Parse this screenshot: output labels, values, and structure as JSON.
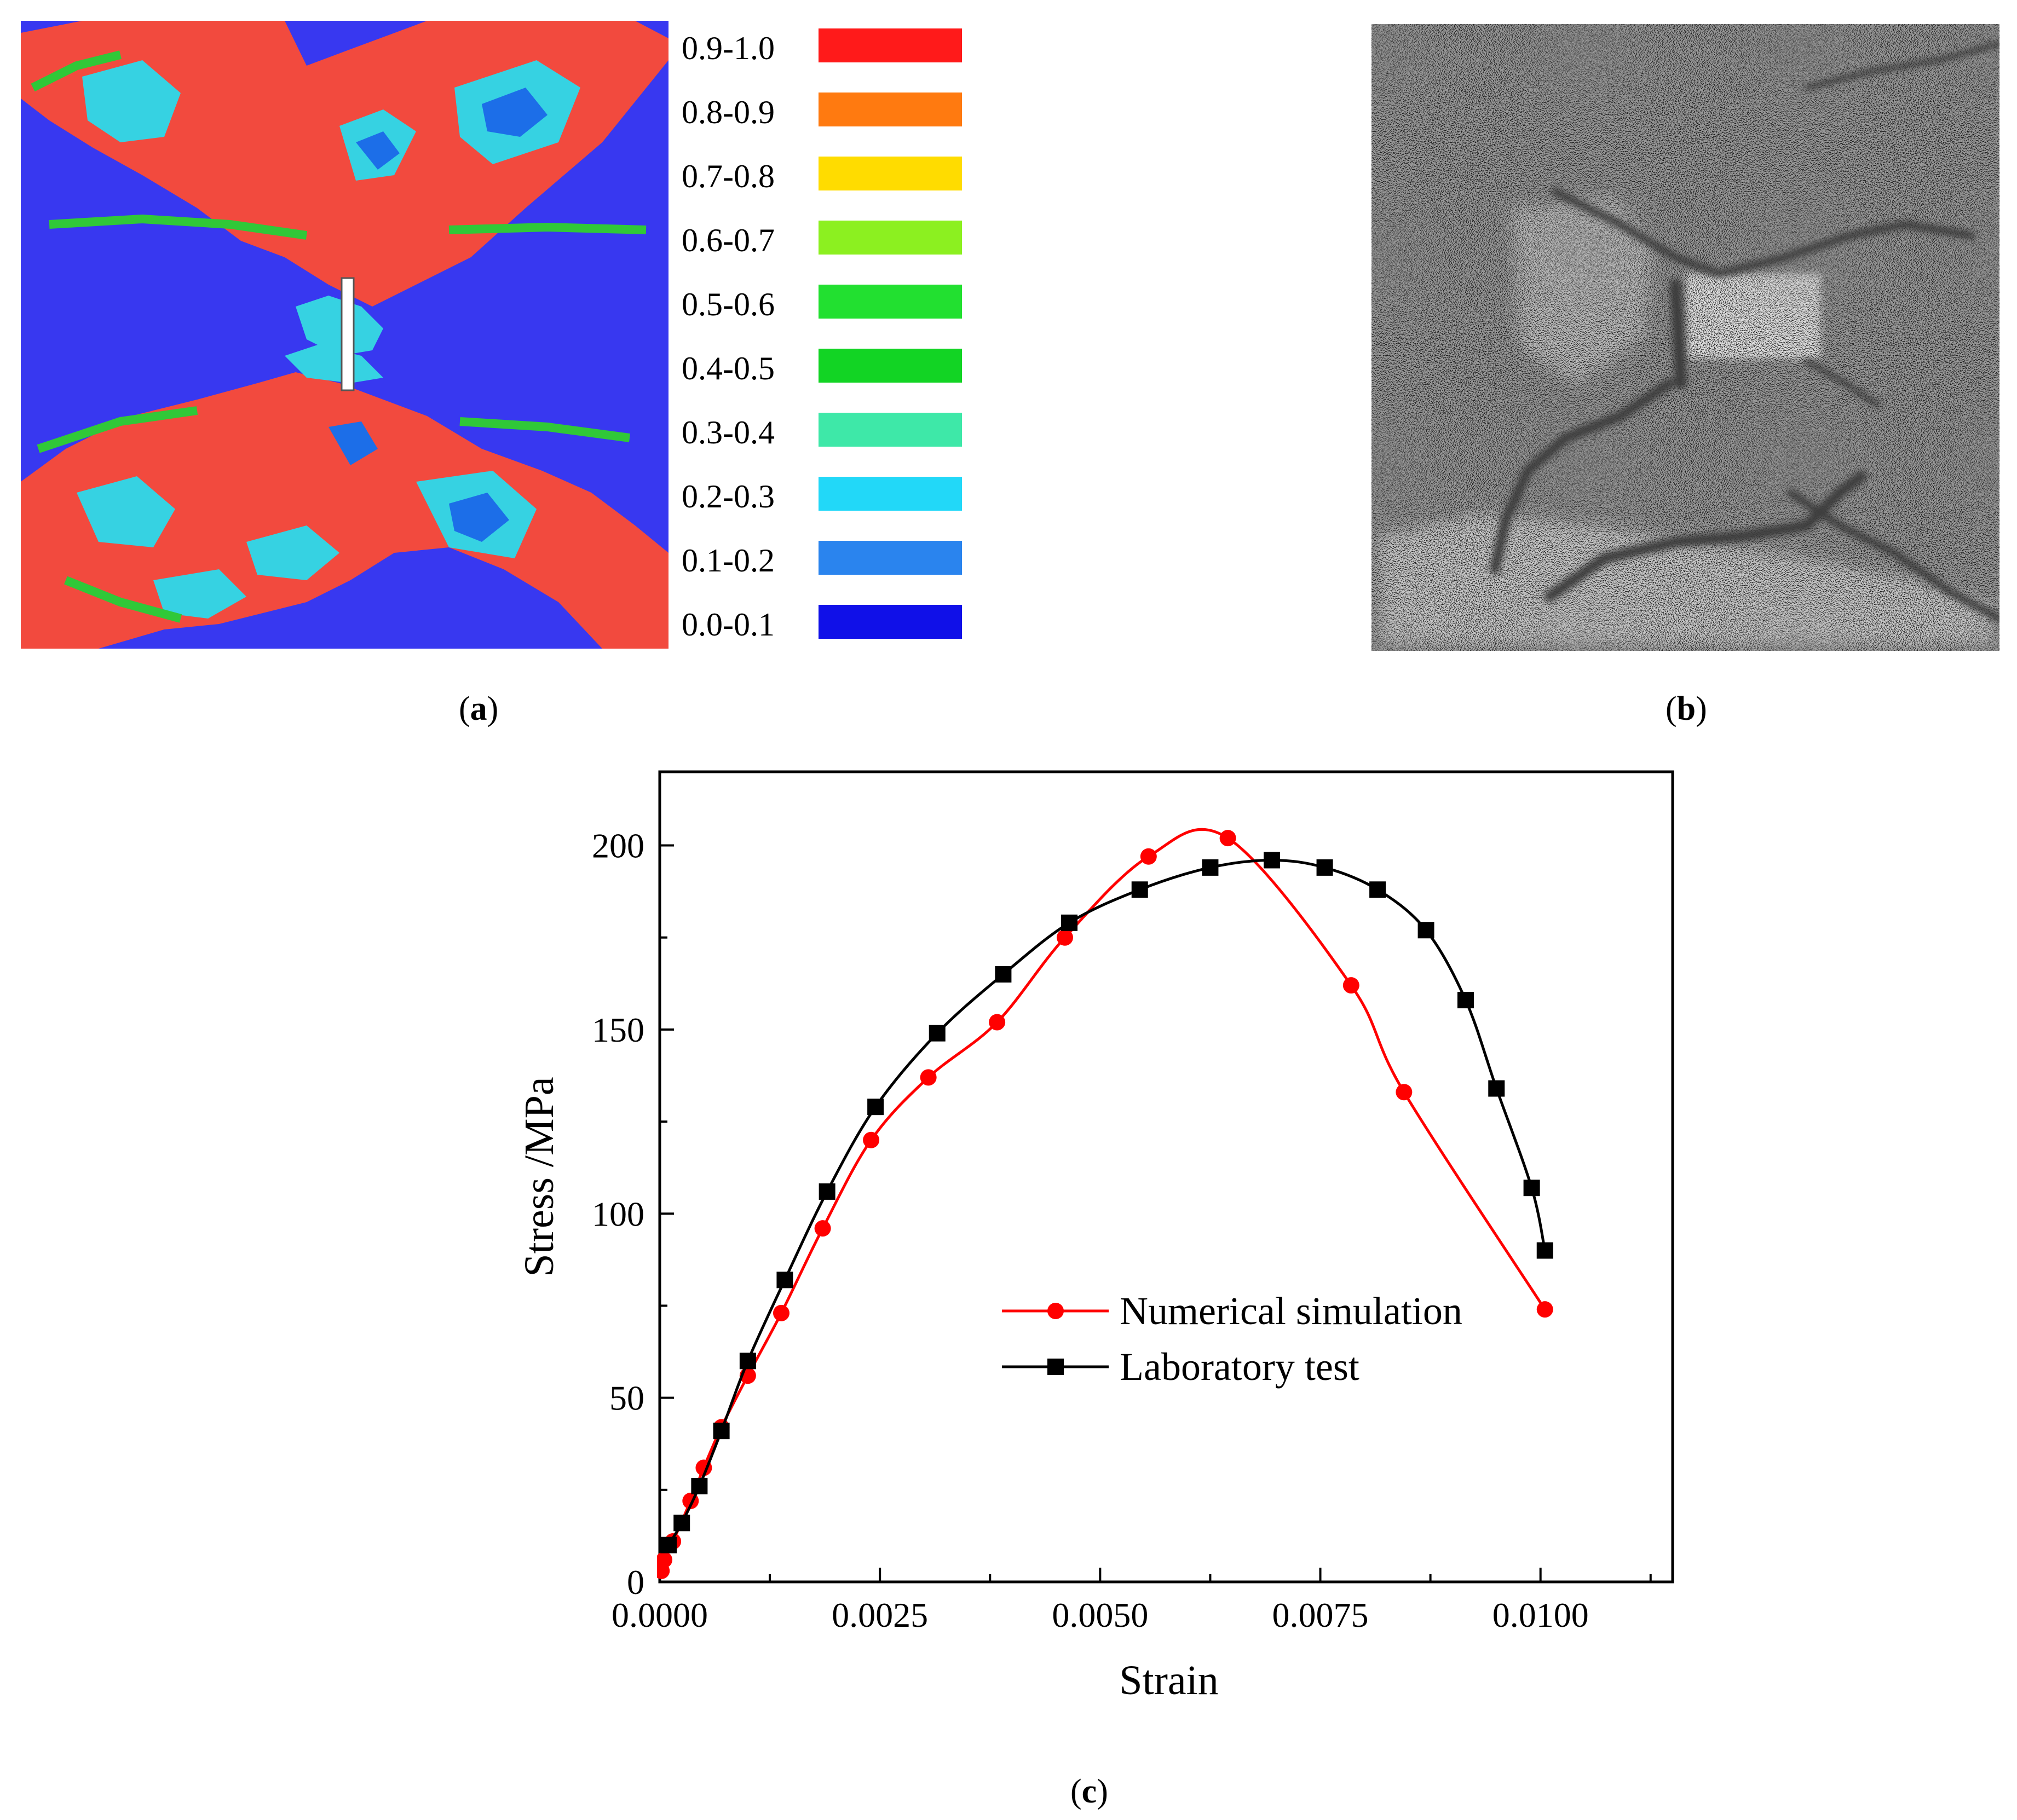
{
  "panel_a": {
    "label_open": "(",
    "label_letter": "a",
    "label_close": ")",
    "legend": [
      {
        "range": "0.9-1.0",
        "color": "#ff1a1a"
      },
      {
        "range": "0.8-0.9",
        "color": "#ff7a10"
      },
      {
        "range": "0.7-0.8",
        "color": "#ffdc00"
      },
      {
        "range": "0.6-0.7",
        "color": "#8cf020"
      },
      {
        "range": "0.5-0.6",
        "color": "#22e030"
      },
      {
        "range": "0.4-0.5",
        "color": "#12d424"
      },
      {
        "range": "0.3-0.4",
        "color": "#3ee8a8"
      },
      {
        "range": "0.2-0.3",
        "color": "#22d8f8"
      },
      {
        "range": "0.1-0.2",
        "color": "#2a84ee"
      },
      {
        "range": "0.0-0.1",
        "color": "#1010e8"
      }
    ],
    "colors": {
      "bg": "#3838f0",
      "red": "#f24a3e",
      "cyan": "#36d2e2",
      "green": "#30c838",
      "blue": "#1c6ee8"
    }
  },
  "panel_b": {
    "label_open": "(",
    "label_letter": "b",
    "label_close": ")",
    "colors": {
      "bg": "#9a9a9a",
      "dark": "#4a4a4a",
      "light": "#d2d2d2"
    }
  },
  "panel_c": {
    "label_open": "(",
    "label_letter": "c",
    "label_close": ")"
  },
  "chart_data": {
    "type": "line",
    "title": "",
    "xlabel": "Strain",
    "ylabel": "Stress /MPa",
    "xlim": [
      0,
      0.0115
    ],
    "ylim": [
      0,
      220
    ],
    "xticks": [
      0.0,
      0.0025,
      0.005,
      0.0075,
      0.01
    ],
    "xtick_labels": [
      "0.0000",
      "0.0025",
      "0.0050",
      "0.0075",
      "0.0100"
    ],
    "yticks": [
      0,
      50,
      100,
      150,
      200
    ],
    "ytick_labels": [
      "0",
      "50",
      "100",
      "150",
      "200"
    ],
    "legend_position": "lower-right",
    "series": [
      {
        "name": "Numerical simulation",
        "color": "#ff0000",
        "marker": "circle",
        "x": [
          2e-05,
          5e-05,
          0.00015,
          0.00035,
          0.0005,
          0.0007,
          0.001,
          0.00138,
          0.00185,
          0.0024,
          0.00305,
          0.00383,
          0.0046,
          0.00555,
          0.00645,
          0.00785,
          0.00845,
          0.01005
        ],
        "y": [
          3,
          6,
          11,
          22,
          31,
          42,
          56,
          73,
          96,
          120,
          137,
          152,
          175,
          197,
          202,
          162,
          133,
          74
        ]
      },
      {
        "name": "Laboratory test",
        "color": "#000000",
        "marker": "square",
        "x": [
          0.0001,
          0.00025,
          0.00045,
          0.0007,
          0.001,
          0.00142,
          0.0019,
          0.00245,
          0.00315,
          0.0039,
          0.00465,
          0.00545,
          0.00625,
          0.00695,
          0.00755,
          0.00815,
          0.0087,
          0.00915,
          0.0095,
          0.0099,
          0.01005
        ],
        "y": [
          10,
          16,
          26,
          41,
          60,
          82,
          106,
          129,
          149,
          165,
          179,
          188,
          194,
          196,
          194,
          188,
          177,
          158,
          134,
          107,
          90
        ]
      }
    ]
  }
}
